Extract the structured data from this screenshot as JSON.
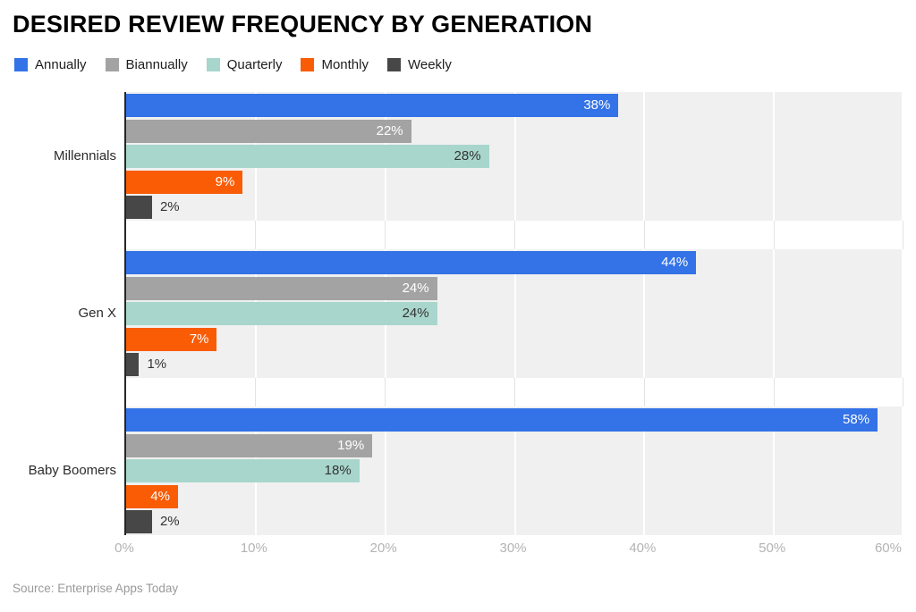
{
  "title": "DESIRED REVIEW FREQUENCY BY GENERATION",
  "source": "Source: Enterprise Apps Today",
  "chart_data": {
    "type": "bar",
    "orientation": "horizontal",
    "title": "DESIRED REVIEW FREQUENCY BY GENERATION",
    "xlabel": "",
    "ylabel": "",
    "categories": [
      "Millennials",
      "Gen X",
      "Baby Boomers"
    ],
    "series": [
      {
        "name": "Annually",
        "color": "#3372e7",
        "label_color": "#ffffff",
        "label_position": "inside",
        "values": [
          38,
          44,
          58
        ]
      },
      {
        "name": "Biannually",
        "color": "#a3a3a3",
        "label_color": "#ffffff",
        "label_position": "inside",
        "values": [
          22,
          24,
          19
        ]
      },
      {
        "name": "Quarterly",
        "color": "#a8d6cc",
        "label_color": "#333333",
        "label_position": "inside",
        "values": [
          28,
          24,
          18
        ]
      },
      {
        "name": "Monthly",
        "color": "#f95c05",
        "label_color": "#ffffff",
        "label_position": "inside",
        "values": [
          9,
          7,
          4
        ]
      },
      {
        "name": "Weekly",
        "color": "#474747",
        "label_color": "#333333",
        "label_position": "outside",
        "values": [
          2,
          1,
          2
        ]
      }
    ],
    "value_suffix": "%",
    "xlim": [
      0,
      60
    ],
    "x_ticks": [
      "0%",
      "10%",
      "20%",
      "30%",
      "40%",
      "50%",
      "60%"
    ],
    "grid": true,
    "legend_position": "top",
    "plot_band_color": "#f0f0f0",
    "grid_color_on_white": "#e3e3e3",
    "grid_color_on_band": "#ffffff",
    "axis_line_color": "#262626",
    "tick_label_color": "#b3b3b3"
  }
}
